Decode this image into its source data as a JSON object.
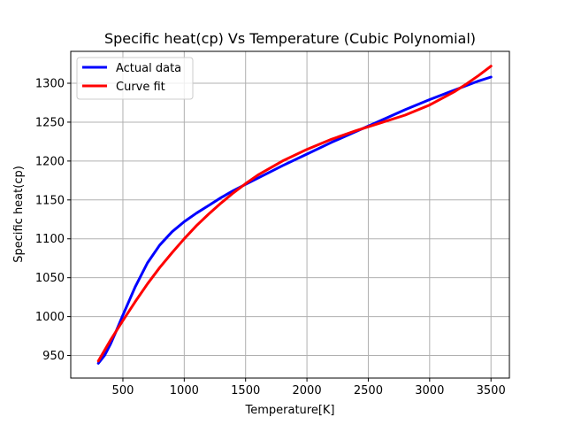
{
  "chart_data": {
    "type": "line",
    "title": "Specific heat(cp) Vs Temperature (Cubic Polynomial)",
    "xlabel": "Temperature[K]",
    "ylabel": "Specific heat(cp)",
    "xlim": [
      75,
      3650
    ],
    "ylim": [
      921,
      1341
    ],
    "xticks": [
      500,
      1000,
      1500,
      2000,
      2500,
      3000,
      3500
    ],
    "yticks": [
      950,
      1000,
      1050,
      1100,
      1150,
      1200,
      1250,
      1300
    ],
    "grid": true,
    "legend_position": "top-left",
    "series": [
      {
        "name": "Actual data",
        "color": "#0000ff",
        "x": [
          300,
          350,
          400,
          450,
          500,
          600,
          700,
          800,
          900,
          1000,
          1100,
          1200,
          1300,
          1400,
          1500,
          1600,
          1800,
          2000,
          2200,
          2400,
          2600,
          2800,
          3000,
          3200,
          3400,
          3500
        ],
        "y": [
          940,
          950,
          965,
          983,
          1002,
          1038,
          1069,
          1092,
          1109,
          1122,
          1133,
          1143,
          1153,
          1162,
          1170,
          1178,
          1194,
          1209,
          1224,
          1238,
          1252,
          1266,
          1279,
          1291,
          1303,
          1308
        ]
      },
      {
        "name": "Curve fit",
        "color": "#ff0000",
        "x": [
          300,
          400,
          500,
          600,
          700,
          800,
          900,
          1000,
          1100,
          1200,
          1300,
          1400,
          1500,
          1600,
          1800,
          2000,
          2200,
          2400,
          2600,
          2800,
          3000,
          3200,
          3300,
          3400,
          3500
        ],
        "y": [
          943,
          970,
          995,
          1019,
          1042,
          1063,
          1082,
          1100,
          1117,
          1132,
          1146,
          1159,
          1171,
          1182,
          1200,
          1215,
          1228,
          1239,
          1249,
          1259,
          1272,
          1289,
          1299,
          1310,
          1322
        ]
      }
    ]
  }
}
